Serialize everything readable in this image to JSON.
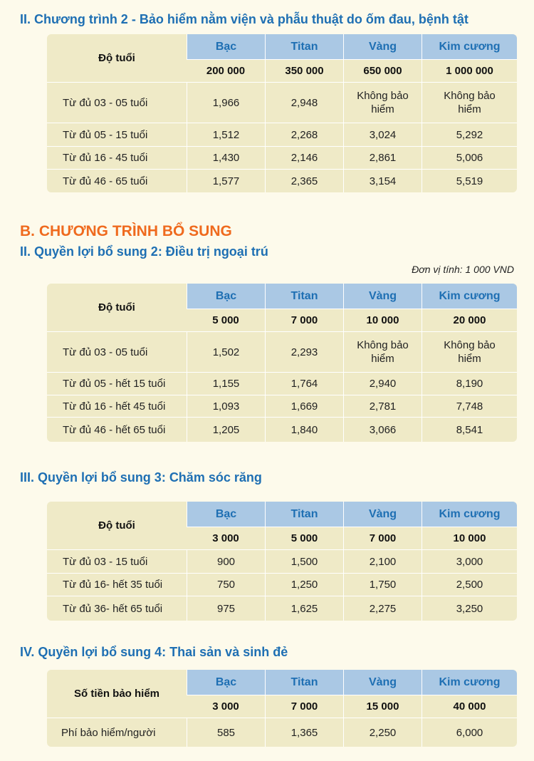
{
  "section_ii": {
    "title": "II. Chương trình 2 - Bảo hiểm nằm viện và phẫu thuật do ốm đau, bệnh tật",
    "age_header": "Độ tuổi",
    "tiers": [
      "Bạc",
      "Titan",
      "Vàng",
      "Kim cương"
    ],
    "amounts": [
      "200 000",
      "350 000",
      "650 000",
      "1 000 000"
    ],
    "rows": [
      {
        "label": "Từ đủ 03 - 05 tuổi",
        "values": [
          "1,966",
          "2,948",
          "Không bảo hiểm",
          "Không bảo hiểm"
        ]
      },
      {
        "label": "Từ đủ 05 - 15 tuổi",
        "values": [
          "1,512",
          "2,268",
          "3,024",
          "5,292"
        ]
      },
      {
        "label": "Từ đủ 16 - 45 tuổi",
        "values": [
          "1,430",
          "2,146",
          "2,861",
          "5,006"
        ]
      },
      {
        "label": "Từ đủ 46 - 65 tuổi",
        "values": [
          "1,577",
          "2,365",
          "3,154",
          "5,519"
        ]
      }
    ]
  },
  "section_b_title": "B. CHƯƠNG TRÌNH BỔ SUNG",
  "benefit_2": {
    "title": "II. Quyền lợi bổ sung 2: Điều trị ngoại trú",
    "unit": "Đơn vị tính: 1 000 VND",
    "age_header": "Độ tuổi",
    "tiers": [
      "Bạc",
      "Titan",
      "Vàng",
      "Kim cương"
    ],
    "amounts": [
      "5 000",
      "7 000",
      "10 000",
      "20 000"
    ],
    "rows": [
      {
        "label": "Từ đủ 03 - 05 tuổi",
        "values": [
          "1,502",
          "2,293",
          "Không bảo hiểm",
          "Không bảo hiểm"
        ]
      },
      {
        "label": "Từ đủ 05 - hết 15 tuổi",
        "values": [
          "1,155",
          "1,764",
          "2,940",
          "8,190"
        ]
      },
      {
        "label": "Từ đủ 16 - hết 45 tuổi",
        "values": [
          "1,093",
          "1,669",
          "2,781",
          "7,748"
        ]
      },
      {
        "label": "Từ đủ 46 - hết 65 tuổi",
        "values": [
          "1,205",
          "1,840",
          "3,066",
          "8,541"
        ]
      }
    ]
  },
  "benefit_3": {
    "title": "III. Quyền lợi bổ sung 3: Chăm sóc răng",
    "age_header": "Độ tuổi",
    "tiers": [
      "Bạc",
      "Titan",
      "Vàng",
      "Kim cương"
    ],
    "amounts": [
      "3 000",
      "5 000",
      "7 000",
      "10 000"
    ],
    "rows": [
      {
        "label": "Từ đủ 03 - 15 tuổi",
        "values": [
          "900",
          "1,500",
          "2,100",
          "3,000"
        ]
      },
      {
        "label": "Từ đủ 16- hết 35 tuổi",
        "values": [
          "750",
          "1,250",
          "1,750",
          "2,500"
        ]
      },
      {
        "label": "Từ đủ 36- hết 65 tuổi",
        "values": [
          "975",
          "1,625",
          "2,275",
          "3,250"
        ]
      }
    ]
  },
  "benefit_4": {
    "title": "IV. Quyền lợi bổ sung 4: Thai sản và sinh đẻ",
    "age_header": "Số tiền bảo hiểm",
    "tiers": [
      "Bạc",
      "Titan",
      "Vàng",
      "Kim cương"
    ],
    "amounts": [
      "3 000",
      "7 000",
      "15 000",
      "40 000"
    ],
    "rows": [
      {
        "label": "Phí bảo hiểm/người",
        "values": [
          "585",
          "1,365",
          "2,250",
          "6,000"
        ]
      }
    ]
  }
}
